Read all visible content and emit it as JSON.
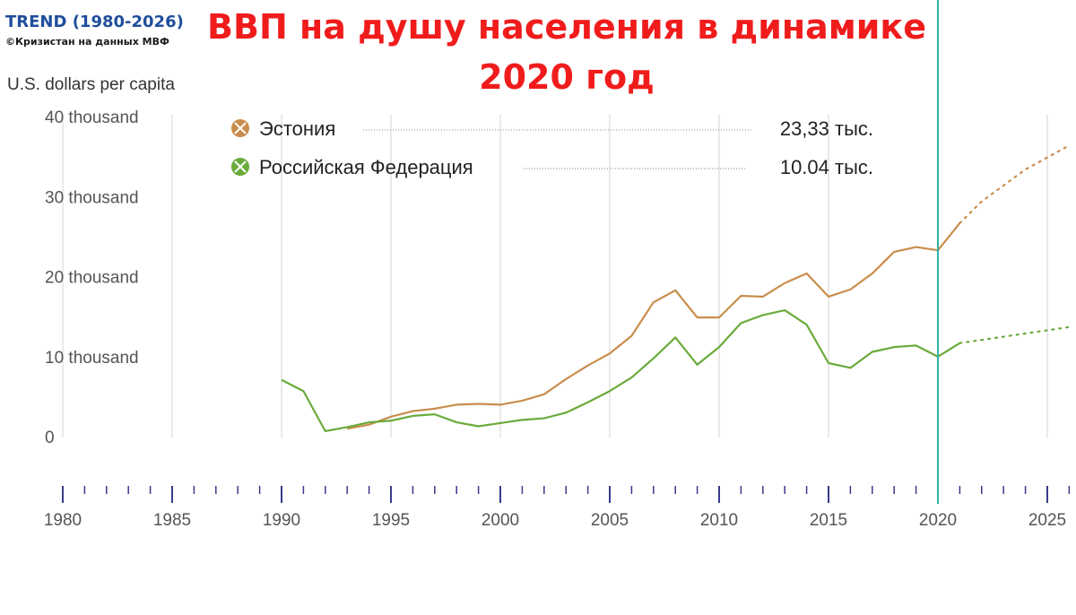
{
  "header": {
    "trend_title": "TREND (1980-2026)",
    "source": "©Кризистан на данных МВФ",
    "title": "ВВП на душу населения в динамике 2020 год"
  },
  "colors": {
    "estonia": "#c98d4c",
    "russia": "#6aab3c",
    "marker_line": "#2fb3a6",
    "grid": "#e2e2e2",
    "axis_tick": "#3a3a8a"
  },
  "chart_data": {
    "type": "line",
    "ylabel": "U.S. dollars per capita",
    "ylim": [
      0,
      40000
    ],
    "xlim": [
      1980,
      2026
    ],
    "y_ticks": [
      {
        "value": 0,
        "label": "0"
      },
      {
        "value": 10000,
        "label": "10 thousand"
      },
      {
        "value": 20000,
        "label": "20 thousand"
      },
      {
        "value": 30000,
        "label": "30 thousand"
      },
      {
        "value": 40000,
        "label": "40 thousand"
      }
    ],
    "x_ticks": [
      1980,
      1985,
      1990,
      1995,
      2000,
      2005,
      2010,
      2015,
      2020,
      2025
    ],
    "highlight_year": 2020,
    "grid": true,
    "legend_position": "top",
    "series": [
      {
        "name": "Эстония",
        "legend_value": "23,33 тыс.",
        "x": [
          1993,
          1994,
          1995,
          1996,
          1997,
          1998,
          1999,
          2000,
          2001,
          2002,
          2003,
          2004,
          2005,
          2006,
          2007,
          2008,
          2009,
          2010,
          2011,
          2012,
          2013,
          2014,
          2015,
          2016,
          2017,
          2018,
          2019,
          2020,
          2021
        ],
        "values": [
          1100,
          1600,
          2600,
          3300,
          3600,
          4100,
          4200,
          4100,
          4600,
          5400,
          7300,
          9000,
          10500,
          12700,
          16900,
          18400,
          15000,
          15000,
          17700,
          17600,
          19300,
          20500,
          17600,
          18500,
          20500,
          23200,
          23800,
          23400,
          26800
        ],
        "projection_x": [
          2021,
          2022,
          2023,
          2024,
          2025,
          2026
        ],
        "projection_values": [
          26800,
          29500,
          31500,
          33500,
          35000,
          36500
        ]
      },
      {
        "name": "Российская Федерация",
        "legend_value": "10.04 тыс.",
        "x": [
          1990,
          1991,
          1992,
          1993,
          1994,
          1995,
          1996,
          1997,
          1998,
          1999,
          2000,
          2001,
          2002,
          2003,
          2004,
          2005,
          2006,
          2007,
          2008,
          2009,
          2010,
          2011,
          2012,
          2013,
          2014,
          2015,
          2016,
          2017,
          2018,
          2019,
          2020,
          2021
        ],
        "values": [
          7200,
          5800,
          800,
          1300,
          1900,
          2100,
          2700,
          2900,
          1900,
          1400,
          1800,
          2200,
          2400,
          3100,
          4400,
          5800,
          7500,
          9900,
          12500,
          9100,
          11300,
          14300,
          15300,
          15900,
          14100,
          9300,
          8700,
          10700,
          11300,
          11500,
          10100,
          11800
        ],
        "projection_x": [
          2021,
          2022,
          2023,
          2024,
          2025,
          2026
        ],
        "projection_values": [
          11800,
          12200,
          12600,
          13000,
          13400,
          13800
        ]
      }
    ]
  }
}
